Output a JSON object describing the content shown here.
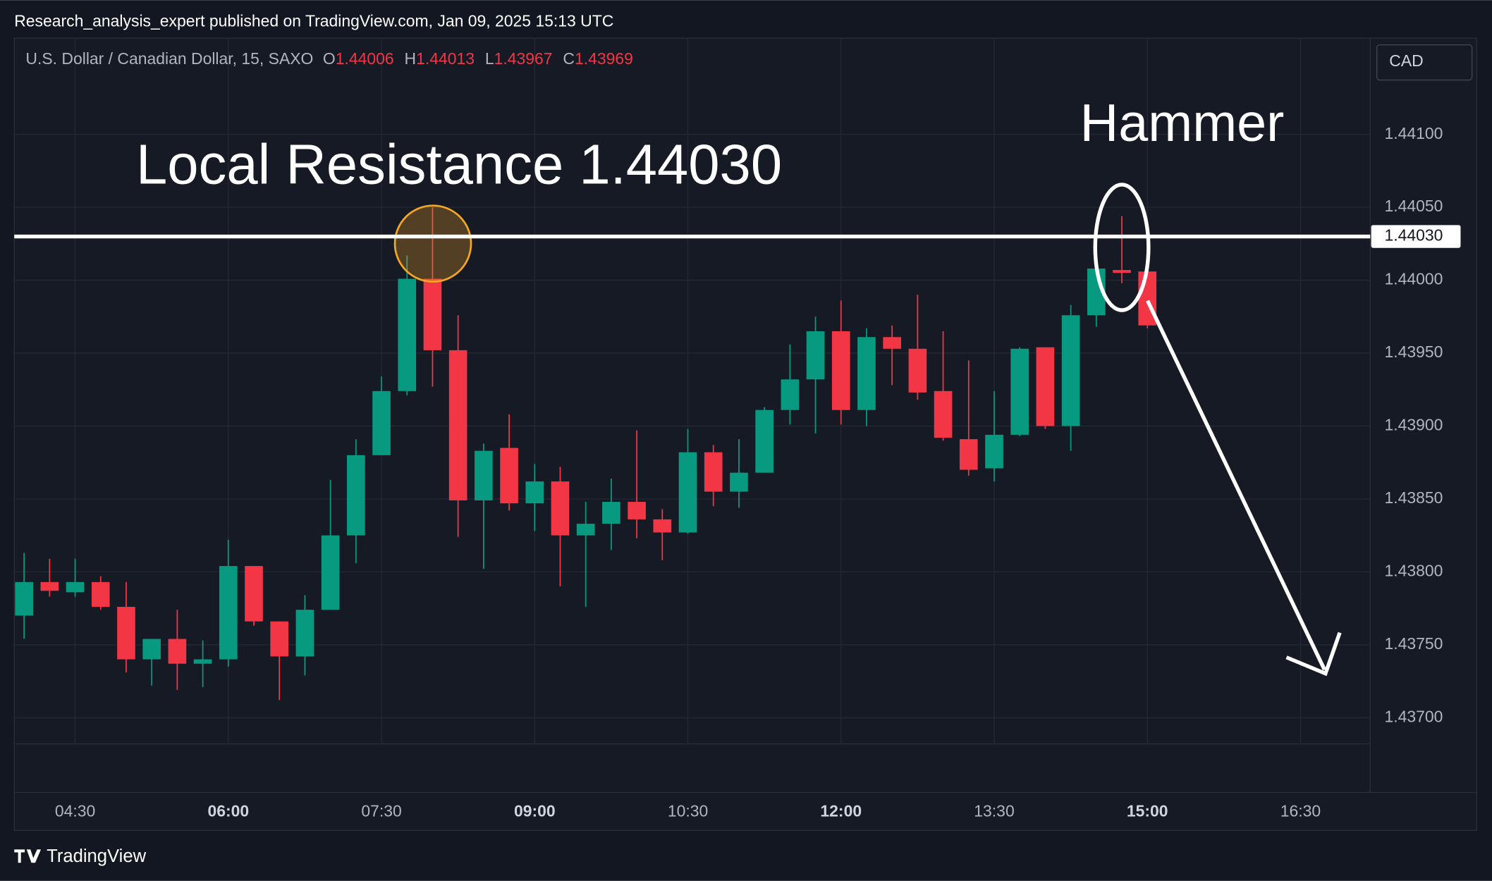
{
  "header": "Research_analysis_expert published on TradingView.com, Jan 09, 2025 15:13 UTC",
  "footer": "TradingView",
  "chart_data": {
    "type": "candlestick",
    "symbol": "U.S. Dollar / Canadian Dollar, 15, SAXO",
    "ohlc_letters": [
      "O",
      "H",
      "L",
      "C"
    ],
    "currency": "CAD",
    "annotations": [
      "Local Resistance 1.44030",
      "Hammer"
    ],
    "resistance_line": {
      "value": 1.4403,
      "label": "1.44030"
    },
    "categories": [
      null,
      null,
      "04:30",
      null,
      null,
      null,
      null,
      null,
      "06:00",
      null,
      null,
      null,
      null,
      null,
      "07:30",
      null,
      null,
      null,
      null,
      null,
      "09:00",
      null,
      null,
      null,
      null,
      null,
      "10:30",
      null,
      null,
      null,
      null,
      null,
      "12:00",
      null,
      null,
      null,
      null,
      null,
      "13:30",
      null,
      null,
      null,
      null,
      null,
      "15:00",
      null,
      null,
      null,
      null,
      null,
      "16:30",
      null,
      null
    ],
    "open": [
      1.4377,
      1.43793,
      1.43786,
      1.43793,
      1.43776,
      1.4374,
      1.43754,
      1.43737,
      1.4374,
      1.43804,
      1.43766,
      1.43742,
      1.43774,
      1.43825,
      1.4388,
      1.43924,
      1.44001,
      1.43952,
      1.43849,
      1.43885,
      1.43847,
      1.43862,
      1.43825,
      1.43833,
      1.43848,
      1.43836,
      1.43827,
      1.43882,
      1.43855,
      1.43868,
      1.43911,
      1.43932,
      1.43965,
      1.43911,
      1.43961,
      1.43953,
      1.43924,
      1.43891,
      1.43871,
      1.43894,
      1.43954,
      1.439,
      1.43976,
      1.44007,
      1.44006,
      null,
      null,
      null,
      null,
      null,
      null,
      null,
      null
    ],
    "high": [
      1.43813,
      1.43809,
      1.43809,
      1.43797,
      1.43793,
      1.43754,
      1.43774,
      1.43753,
      1.43822,
      1.43804,
      1.43766,
      1.43784,
      1.43863,
      1.43891,
      1.43934,
      1.44017,
      1.4405,
      1.43976,
      1.43888,
      1.43908,
      1.43874,
      1.43872,
      1.43848,
      1.43864,
      1.43897,
      1.43843,
      1.43898,
      1.43887,
      1.43891,
      1.43913,
      1.43956,
      1.43975,
      1.43986,
      1.43967,
      1.43969,
      1.4399,
      1.43965,
      1.43945,
      1.43924,
      1.43954,
      1.43954,
      1.43983,
      1.44008,
      1.44044,
      1.44013,
      null,
      null,
      null,
      null,
      null,
      null,
      null,
      null
    ],
    "low": [
      1.43754,
      1.43783,
      1.43783,
      1.43774,
      1.43731,
      1.43722,
      1.43719,
      1.43721,
      1.43735,
      1.43763,
      1.43712,
      1.43729,
      1.43774,
      1.43806,
      1.4388,
      1.43921,
      1.43927,
      1.43824,
      1.43802,
      1.43842,
      1.43828,
      1.4379,
      1.43776,
      1.43815,
      1.43823,
      1.43808,
      1.43826,
      1.43845,
      1.43844,
      1.43868,
      1.43901,
      1.43895,
      1.43901,
      1.439,
      1.43928,
      1.43918,
      1.4389,
      1.43866,
      1.43862,
      1.43893,
      1.43898,
      1.43883,
      1.43968,
      1.43998,
      1.43967,
      null,
      null,
      null,
      null,
      null,
      null,
      null,
      null
    ],
    "close": [
      1.43793,
      1.43787,
      1.43793,
      1.43776,
      1.4374,
      1.43754,
      1.43737,
      1.4374,
      1.43804,
      1.43766,
      1.43742,
      1.43774,
      1.43825,
      1.4388,
      1.43924,
      1.44001,
      1.43952,
      1.43849,
      1.43883,
      1.43847,
      1.43862,
      1.43825,
      1.43833,
      1.43848,
      1.43836,
      1.43827,
      1.43882,
      1.43855,
      1.43868,
      1.43911,
      1.43932,
      1.43965,
      1.43911,
      1.43961,
      1.43953,
      1.43923,
      1.43892,
      1.4387,
      1.43894,
      1.43953,
      1.439,
      1.43976,
      1.44008,
      1.44005,
      1.43969,
      null,
      null,
      null,
      null,
      null,
      null,
      null,
      null
    ],
    "up_color": "#089981",
    "down_color": "#f23645",
    "ylim": [
      1.43682,
      1.44166
    ],
    "yticks": [
      {
        "value": 1.437,
        "label": "1.43700"
      },
      {
        "value": 1.4375,
        "label": "1.43750"
      },
      {
        "value": 1.438,
        "label": "1.43800"
      },
      {
        "value": 1.4385,
        "label": "1.43850"
      },
      {
        "value": 1.439,
        "label": "1.43900"
      },
      {
        "value": 1.4395,
        "label": "1.43950"
      },
      {
        "value": 1.44,
        "label": "1.44000"
      },
      {
        "value": 1.4405,
        "label": "1.44050"
      },
      {
        "value": 1.441,
        "label": "1.44100"
      }
    ],
    "grid": true
  }
}
